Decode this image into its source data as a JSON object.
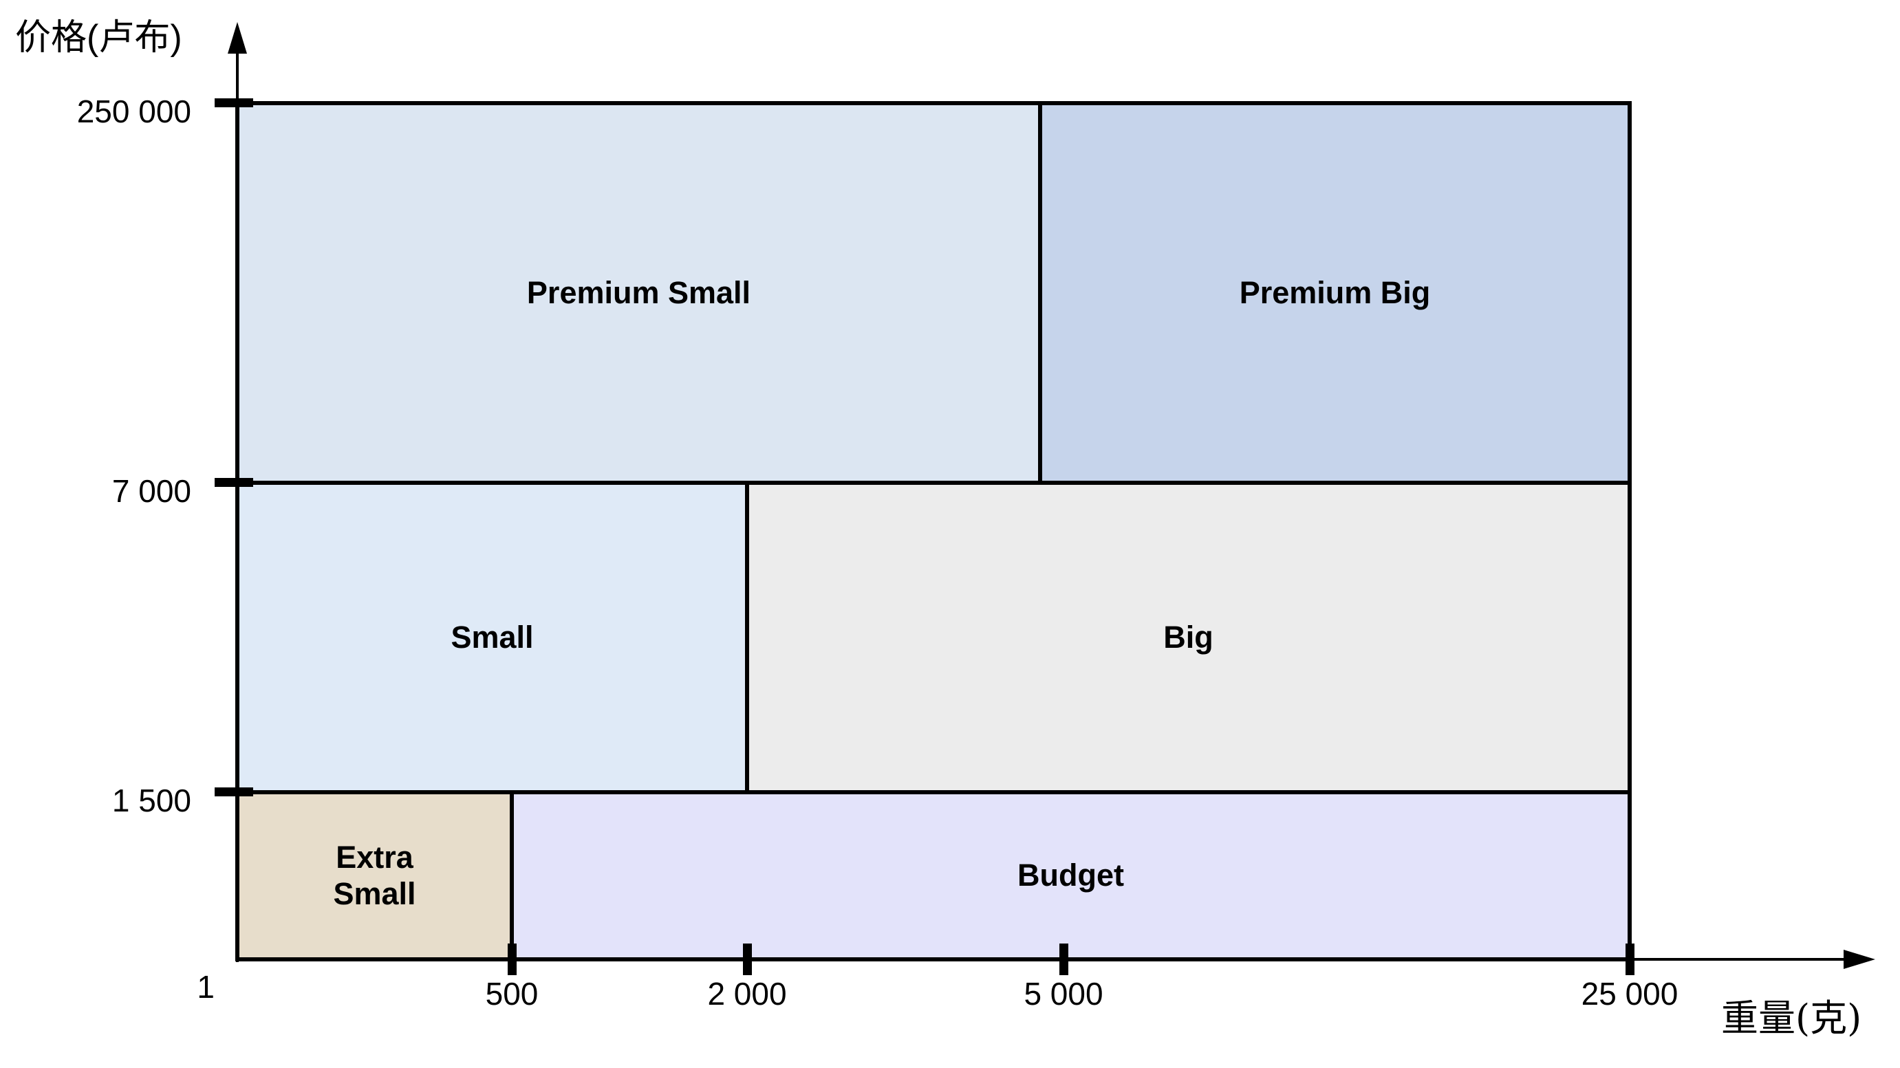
{
  "chart_data": {
    "type": "heatmap",
    "title": "",
    "xlabel": "重量(克)",
    "ylabel": "价格(卢布)",
    "origin_label": "1",
    "x_axis": {
      "range": [
        1,
        25000
      ],
      "ticks": [
        {
          "label": "500",
          "value": 500
        },
        {
          "label": "2 000",
          "value": 2000
        },
        {
          "label": "5 000",
          "value": 5000
        },
        {
          "label": "25 000",
          "value": 25000
        }
      ]
    },
    "y_axis": {
      "range": [
        1,
        250000
      ],
      "ticks": [
        {
          "label": "1 500",
          "value": 1500
        },
        {
          "label": "7 000",
          "value": 7000
        },
        {
          "label": "250 000",
          "value": 250000
        }
      ]
    },
    "regions": [
      {
        "id": "premium-small",
        "label": "Premium Small",
        "label_lines": [
          "Premium Small"
        ],
        "color": "#dce6f2",
        "weight_g": [
          1,
          5000
        ],
        "price_rub": [
          7000,
          250000
        ]
      },
      {
        "id": "premium-big",
        "label": "Premium Big",
        "label_lines": [
          "Premium Big"
        ],
        "color": "#c6d4eb",
        "weight_g": [
          5000,
          25000
        ],
        "price_rub": [
          7000,
          250000
        ]
      },
      {
        "id": "small",
        "label": "Small",
        "label_lines": [
          "Small"
        ],
        "color": "#dfeaf7",
        "weight_g": [
          1,
          2000
        ],
        "price_rub": [
          1500,
          7000
        ]
      },
      {
        "id": "big",
        "label": "Big",
        "label_lines": [
          "Big"
        ],
        "color": "#ececec",
        "weight_g": [
          2000,
          25000
        ],
        "price_rub": [
          1500,
          7000
        ]
      },
      {
        "id": "extra-small",
        "label": "Extra Small",
        "label_lines": [
          "Extra",
          "Small"
        ],
        "color": "#e7ddcb",
        "weight_g": [
          1,
          500
        ],
        "price_rub": [
          1,
          1500
        ]
      },
      {
        "id": "budget",
        "label": "Budget",
        "label_lines": [
          "Budget"
        ],
        "color": "#e3e3fa",
        "weight_g": [
          500,
          25000
        ],
        "price_rub": [
          1,
          1500
        ]
      }
    ],
    "colors": {
      "axis": "#000000",
      "text": "#000000",
      "background": "#ffffff"
    },
    "legend": "none",
    "grid": "off"
  }
}
